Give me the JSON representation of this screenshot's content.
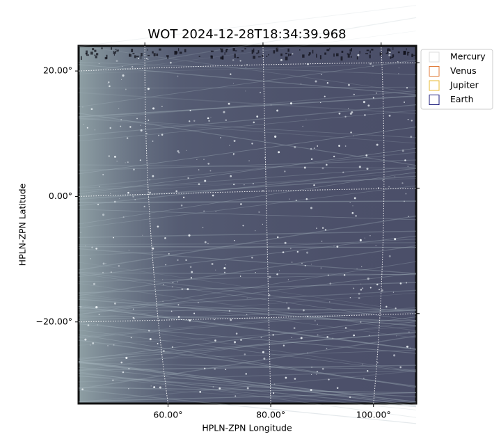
{
  "chart_data": {
    "type": "image",
    "title": "WOT 2024-12-28T18:34:39.968",
    "xlabel": "HPLN-ZPN Longitude",
    "ylabel": "HPLN-ZPN Latitude",
    "xlim": [
      42.6,
      108.3
    ],
    "ylim": [
      -33,
      24
    ],
    "xticks": [
      {
        "value": 60,
        "label": "60.00°"
      },
      {
        "value": 80,
        "label": "80.00°"
      },
      {
        "value": 100,
        "label": "100.00°"
      }
    ],
    "yticks": [
      {
        "value": -20,
        "label": "−20.00°"
      },
      {
        "value": 0,
        "label": "0.00°"
      },
      {
        "value": 20,
        "label": "20.00°"
      }
    ],
    "grid": true,
    "legend": "upper right",
    "series": [
      {
        "name": "Mercury",
        "color": "#dddddd"
      },
      {
        "name": "Venus",
        "color": "#e07b39"
      },
      {
        "name": "Jupiter",
        "color": "#e8b830"
      },
      {
        "name": "Earth",
        "color": "#1a1a7a"
      }
    ]
  }
}
